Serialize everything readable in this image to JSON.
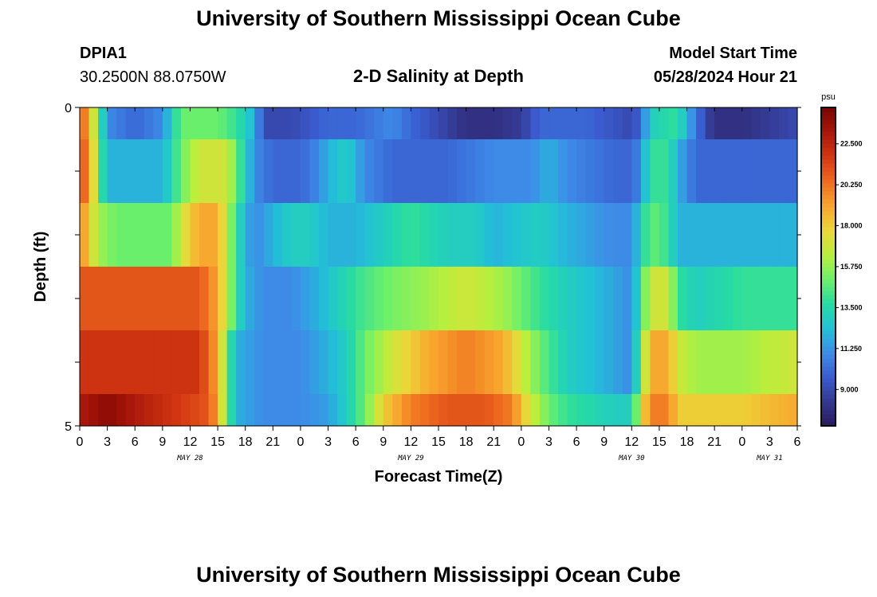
{
  "header": {
    "title": "University of Southern Mississippi Ocean Cube",
    "station_id": "DPIA1",
    "coordinates": "30.2500N  88.0750W",
    "plot_title": "2-D Salinity at Depth",
    "model_start_label": "Model Start Time",
    "model_start_value": "05/28/2024 Hour 21"
  },
  "footer": {
    "title": "University of Southern Mississippi Ocean Cube"
  },
  "colormap": [
    "#2b1a5e",
    "#34388f",
    "#3a5cd0",
    "#3d8ce8",
    "#21c2d6",
    "#27dba3",
    "#6ef06a",
    "#b9ef3c",
    "#ecd639",
    "#f8a52e",
    "#ee6a1f",
    "#d33712",
    "#a8170a",
    "#7a0403"
  ],
  "chart_data": {
    "type": "heatmap",
    "xlabel": "Forecast Time(Z)",
    "ylabel": "Depth (ft)",
    "y_range": [
      0,
      5
    ],
    "y_tick_labels": [
      "0",
      "5"
    ],
    "x_range": [
      0,
      78
    ],
    "x_tick_labels": [
      "0",
      "3",
      "6",
      "9",
      "12",
      "15",
      "18",
      "21",
      "0",
      "3",
      "6",
      "9",
      "12",
      "15",
      "18",
      "21",
      "0",
      "3",
      "6",
      "9",
      "12",
      "15",
      "18",
      "21",
      "0",
      "3",
      "6"
    ],
    "date_labels": [
      {
        "label": "MAY 28",
        "hour": 12
      },
      {
        "label": "MAY 29",
        "hour": 36
      },
      {
        "label": "MAY 30",
        "hour": 60
      },
      {
        "label": "MAY 31",
        "hour": 75
      }
    ],
    "colorbar": {
      "unit": "psu",
      "min": 7.0,
      "max": 24.5,
      "tick_values": [
        22.5,
        20.25,
        18.0,
        15.75,
        13.5,
        11.25,
        9.0
      ],
      "tick_labels": [
        "22.500",
        "20.250",
        "18.000",
        "15.750",
        "13.500",
        "11.250",
        "9.000"
      ]
    },
    "layers": [
      {
        "depth_range": [
          0.0,
          0.5
        ],
        "keypoints": [
          [
            0,
            21
          ],
          [
            1,
            19
          ],
          [
            2,
            15
          ],
          [
            3,
            11
          ],
          [
            6,
            10
          ],
          [
            9,
            11
          ],
          [
            10,
            13
          ],
          [
            11,
            15
          ],
          [
            15,
            15
          ],
          [
            17,
            14
          ],
          [
            19,
            12
          ],
          [
            20,
            9
          ],
          [
            23,
            9
          ],
          [
            27,
            10
          ],
          [
            30,
            10
          ],
          [
            34,
            11
          ],
          [
            36,
            10
          ],
          [
            39,
            9
          ],
          [
            42,
            8
          ],
          [
            45,
            8
          ],
          [
            48,
            8.5
          ],
          [
            50,
            10
          ],
          [
            55,
            10
          ],
          [
            60,
            9
          ],
          [
            61,
            10
          ],
          [
            62,
            13
          ],
          [
            65,
            14
          ],
          [
            66,
            12
          ],
          [
            68,
            9
          ],
          [
            69,
            8
          ],
          [
            72,
            8
          ],
          [
            75,
            8.5
          ],
          [
            78,
            9
          ]
        ]
      },
      {
        "depth_range": [
          0.5,
          1.5
        ],
        "keypoints": [
          [
            0,
            21
          ],
          [
            1,
            20
          ],
          [
            2,
            15
          ],
          [
            3,
            12
          ],
          [
            9,
            12
          ],
          [
            11,
            15
          ],
          [
            13,
            17
          ],
          [
            16,
            17
          ],
          [
            17,
            15
          ],
          [
            18,
            13
          ],
          [
            19,
            11
          ],
          [
            21,
            10
          ],
          [
            24,
            10
          ],
          [
            26,
            11
          ],
          [
            27,
            12
          ],
          [
            29,
            13
          ],
          [
            31,
            11
          ],
          [
            34,
            10
          ],
          [
            40,
            10
          ],
          [
            45,
            11
          ],
          [
            49,
            11
          ],
          [
            51,
            12
          ],
          [
            53,
            11
          ],
          [
            58,
            10
          ],
          [
            60,
            10
          ],
          [
            61,
            11
          ],
          [
            62,
            14
          ],
          [
            64,
            14
          ],
          [
            65,
            12
          ],
          [
            67,
            10
          ],
          [
            72,
            10
          ],
          [
            78,
            10
          ]
        ]
      },
      {
        "depth_range": [
          1.5,
          2.5
        ],
        "keypoints": [
          [
            0,
            20
          ],
          [
            1,
            18
          ],
          [
            2,
            16
          ],
          [
            4,
            15
          ],
          [
            10,
            15
          ],
          [
            11,
            17
          ],
          [
            13,
            19
          ],
          [
            15,
            19
          ],
          [
            17,
            14
          ],
          [
            18,
            12
          ],
          [
            19,
            11
          ],
          [
            21,
            12
          ],
          [
            23,
            13
          ],
          [
            25,
            13
          ],
          [
            27,
            12
          ],
          [
            30,
            12
          ],
          [
            33,
            13
          ],
          [
            36,
            14
          ],
          [
            40,
            13
          ],
          [
            43,
            13
          ],
          [
            45,
            12
          ],
          [
            50,
            13
          ],
          [
            53,
            12
          ],
          [
            58,
            11
          ],
          [
            60,
            11
          ],
          [
            61,
            13
          ],
          [
            62,
            15
          ],
          [
            64,
            14
          ],
          [
            65,
            12
          ],
          [
            67,
            12
          ],
          [
            72,
            12
          ],
          [
            78,
            12
          ]
        ]
      },
      {
        "depth_range": [
          2.5,
          3.5
        ],
        "keypoints": [
          [
            0,
            21
          ],
          [
            5,
            21
          ],
          [
            10,
            21
          ],
          [
            13,
            21
          ],
          [
            15,
            19
          ],
          [
            17,
            14
          ],
          [
            18,
            12
          ],
          [
            20,
            11
          ],
          [
            23,
            11
          ],
          [
            26,
            12
          ],
          [
            28,
            13
          ],
          [
            30,
            14
          ],
          [
            33,
            15
          ],
          [
            38,
            16
          ],
          [
            42,
            17
          ],
          [
            46,
            16
          ],
          [
            48,
            15
          ],
          [
            50,
            14
          ],
          [
            53,
            13
          ],
          [
            57,
            12
          ],
          [
            60,
            11
          ],
          [
            61,
            14
          ],
          [
            62,
            17
          ],
          [
            64,
            17
          ],
          [
            65,
            14
          ],
          [
            67,
            13
          ],
          [
            72,
            14
          ],
          [
            78,
            14
          ]
        ]
      },
      {
        "depth_range": [
          3.5,
          4.5
        ],
        "keypoints": [
          [
            0,
            22
          ],
          [
            5,
            22
          ],
          [
            10,
            22
          ],
          [
            13,
            22
          ],
          [
            15,
            19
          ],
          [
            16,
            15
          ],
          [
            17,
            12
          ],
          [
            20,
            11
          ],
          [
            24,
            11
          ],
          [
            27,
            12
          ],
          [
            29,
            13
          ],
          [
            31,
            15
          ],
          [
            34,
            17
          ],
          [
            38,
            19
          ],
          [
            42,
            20
          ],
          [
            46,
            19
          ],
          [
            48,
            17
          ],
          [
            50,
            15
          ],
          [
            53,
            13
          ],
          [
            57,
            12
          ],
          [
            60,
            11
          ],
          [
            61,
            15
          ],
          [
            62,
            19
          ],
          [
            64,
            19
          ],
          [
            65,
            17
          ],
          [
            67,
            16
          ],
          [
            72,
            16
          ],
          [
            78,
            17
          ]
        ]
      },
      {
        "depth_range": [
          4.5,
          5.0
        ],
        "keypoints": [
          [
            0,
            23
          ],
          [
            3,
            24
          ],
          [
            6,
            23
          ],
          [
            10,
            22
          ],
          [
            14,
            21
          ],
          [
            15,
            19
          ],
          [
            16,
            15
          ],
          [
            17,
            12
          ],
          [
            20,
            11
          ],
          [
            24,
            11
          ],
          [
            27,
            11.5
          ],
          [
            29,
            13
          ],
          [
            31,
            15
          ],
          [
            33,
            18
          ],
          [
            36,
            20
          ],
          [
            40,
            21
          ],
          [
            44,
            21
          ],
          [
            47,
            20
          ],
          [
            49,
            17
          ],
          [
            51,
            15
          ],
          [
            53,
            14
          ],
          [
            58,
            13
          ],
          [
            60,
            13
          ],
          [
            61,
            17
          ],
          [
            62,
            20
          ],
          [
            64,
            20
          ],
          [
            65,
            18
          ],
          [
            67,
            18
          ],
          [
            72,
            18
          ],
          [
            78,
            19
          ]
        ]
      }
    ]
  }
}
